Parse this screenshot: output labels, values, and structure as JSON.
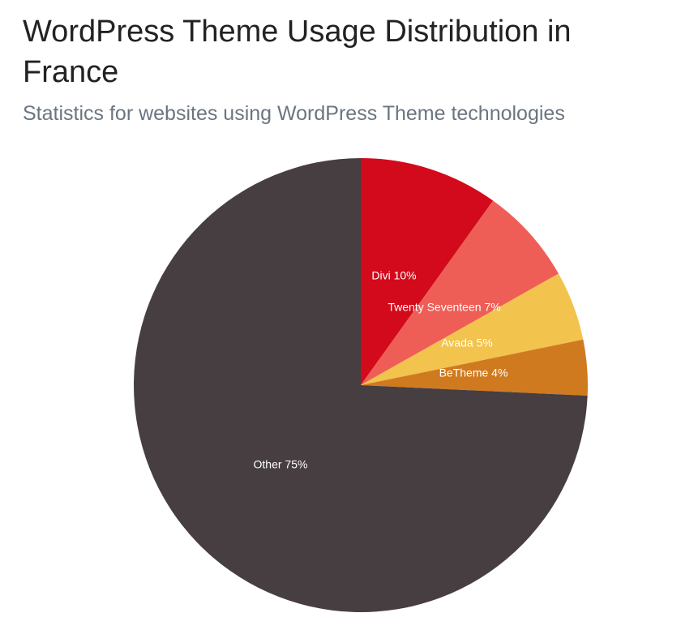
{
  "header": {
    "title": "WordPress Theme Usage Distribution in France",
    "subtitle": "Statistics for websites using WordPress Theme technologies"
  },
  "chart_data": {
    "type": "pie",
    "title": "WordPress Theme Usage Distribution in France",
    "subtitle": "Statistics for websites using WordPress Theme technologies",
    "start_angle": "12 o'clock, clockwise",
    "slices": [
      {
        "label": "Divi",
        "value": 10,
        "display": "Divi 10%",
        "color": "#d20a1b"
      },
      {
        "label": "Twenty Seventeen",
        "value": 7,
        "display": "Twenty Seventeen 7%",
        "color": "#ee5e56"
      },
      {
        "label": "Avada",
        "value": 5,
        "display": "Avada 5%",
        "color": "#f2c34d"
      },
      {
        "label": "BeTheme",
        "value": 4,
        "display": "BeTheme 4%",
        "color": "#d07a1f"
      },
      {
        "label": "Other",
        "value": 75,
        "display": "Other 75%",
        "color": "#463e40"
      }
    ]
  }
}
